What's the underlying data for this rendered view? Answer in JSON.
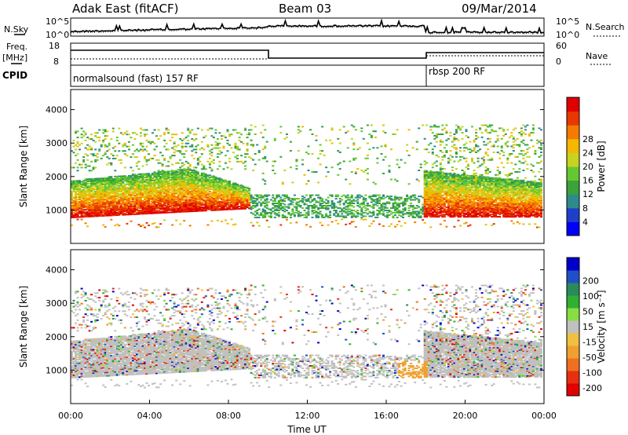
{
  "header": {
    "station": "Adak East (fitACF)",
    "beam": "Beam 03",
    "date": "09/Mar/2014"
  },
  "labels": {
    "nsky": "N.Sky",
    "nsearch": "N.Search",
    "freq": "Freq.",
    "freq_unit": "[MHz]",
    "nave": "Nave",
    "cpid": "CPID"
  },
  "cpid_programs": [
    {
      "name": "normalsound (fast) 157 RF",
      "start_ut": 0
    },
    {
      "name": "rbsp 200 RF",
      "start_ut": 18
    }
  ],
  "noise_axis": {
    "left_ticks": [
      "10^5",
      "10^0"
    ],
    "right_ticks": [
      "10^5",
      "10^0"
    ]
  },
  "freq_axis": {
    "left_ticks": [
      "18",
      "8"
    ],
    "right_ticks": [
      "60",
      "0"
    ]
  },
  "chart_data": [
    {
      "type": "heatmap",
      "name": "power",
      "ylabel": "Slant Range [km]",
      "xlim": [
        0,
        24
      ],
      "ylim": [
        0,
        4600
      ],
      "yticks": [
        1000,
        2000,
        3000,
        4000
      ],
      "colorbar": {
        "label": "Power [dB]",
        "ticks": [
          4,
          8,
          12,
          16,
          20,
          24,
          28
        ],
        "colors": [
          "#0000ff",
          "#1e40c8",
          "#2e8b8b",
          "#3aa33a",
          "#66c830",
          "#c8d220",
          "#f5b800",
          "#f57a00",
          "#e83800",
          "#e00000"
        ]
      }
    },
    {
      "type": "heatmap",
      "name": "velocity",
      "ylabel": "Slant Range [km]",
      "xlabel": "Time UT",
      "xlim": [
        0,
        24
      ],
      "ylim": [
        0,
        4600
      ],
      "yticks": [
        1000,
        2000,
        3000,
        4000
      ],
      "xticks": [
        "00:00",
        "04:00",
        "08:00",
        "12:00",
        "16:00",
        "20:00",
        "00:00"
      ],
      "colorbar": {
        "label": "Velocity [m s⁻¹]",
        "ticks": [
          "200",
          "100",
          "50",
          "15",
          "-15",
          "-50",
          "-100",
          "-200"
        ],
        "colors": [
          "#0000cc",
          "#2050c8",
          "#2a8a5a",
          "#30b030",
          "#88dd44",
          "#c0c0c0",
          "#f0c040",
          "#f0a030",
          "#f07020",
          "#e83010",
          "#e00000"
        ]
      }
    }
  ]
}
